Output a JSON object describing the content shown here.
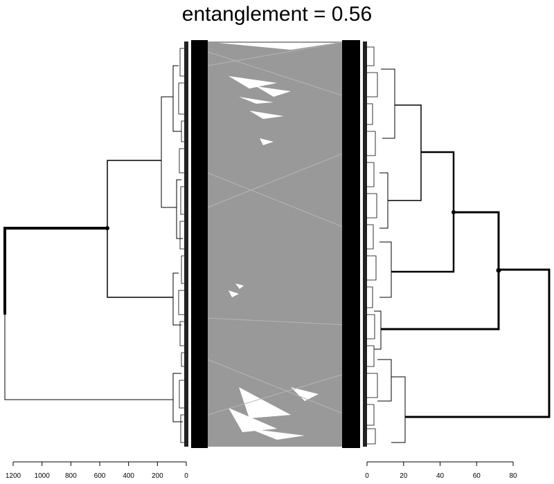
{
  "title": "entanglement = 0.56",
  "left_axis": {
    "ticks": [
      "1200",
      "1000",
      "800",
      "600",
      "400",
      "200",
      "0"
    ],
    "max": 1200
  },
  "right_axis": {
    "ticks": [
      "0",
      "20",
      "40",
      "60",
      "80"
    ],
    "max": 80
  },
  "colors": {
    "lines": "#999999",
    "branches": "#000000",
    "label_block": "#000000"
  }
}
